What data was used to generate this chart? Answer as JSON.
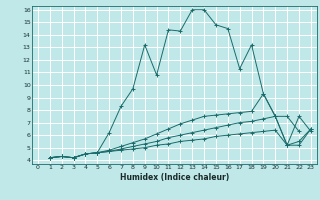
{
  "xlabel": "Humidex (Indice chaleur)",
  "bg_color": "#c0e8e8",
  "grid_color": "#ffffff",
  "line_color": "#1a6b6b",
  "xlim": [
    -0.5,
    23.5
  ],
  "ylim": [
    3.7,
    16.3
  ],
  "xticks": [
    0,
    1,
    2,
    3,
    4,
    5,
    6,
    7,
    8,
    9,
    10,
    11,
    12,
    13,
    14,
    15,
    16,
    17,
    18,
    19,
    20,
    21,
    22,
    23
  ],
  "yticks": [
    4,
    5,
    6,
    7,
    8,
    9,
    10,
    11,
    12,
    13,
    14,
    15,
    16
  ],
  "line1_x": [
    1,
    2,
    3,
    4,
    5,
    6,
    7,
    8,
    9,
    10,
    11,
    12,
    13,
    14,
    15,
    16,
    17,
    18,
    19,
    20,
    21,
    22
  ],
  "line1_y": [
    4.2,
    4.3,
    4.2,
    4.5,
    4.6,
    6.2,
    8.3,
    9.7,
    13.2,
    10.8,
    14.4,
    14.3,
    16.0,
    16.0,
    14.8,
    14.5,
    11.3,
    13.2,
    9.3,
    7.5,
    7.5,
    6.3
  ],
  "line2_x": [
    1,
    2,
    3,
    4,
    5,
    6,
    7,
    8,
    9,
    10,
    11,
    12,
    13,
    14,
    15,
    16,
    17,
    18,
    19,
    20,
    21,
    22,
    23
  ],
  "line2_y": [
    4.2,
    4.3,
    4.2,
    4.5,
    4.6,
    4.8,
    5.1,
    5.4,
    5.7,
    6.1,
    6.5,
    6.9,
    7.2,
    7.5,
    7.6,
    7.7,
    7.8,
    7.9,
    9.3,
    7.5,
    5.2,
    7.5,
    6.3
  ],
  "line3_x": [
    1,
    2,
    3,
    4,
    5,
    6,
    7,
    8,
    9,
    10,
    11,
    12,
    13,
    14,
    15,
    16,
    17,
    18,
    19,
    20,
    21,
    22,
    23
  ],
  "line3_y": [
    4.2,
    4.3,
    4.2,
    4.5,
    4.6,
    4.7,
    4.9,
    5.1,
    5.3,
    5.5,
    5.8,
    6.0,
    6.2,
    6.4,
    6.6,
    6.8,
    7.0,
    7.1,
    7.3,
    7.5,
    5.2,
    5.5,
    6.5
  ],
  "line4_x": [
    1,
    2,
    3,
    4,
    5,
    6,
    7,
    8,
    9,
    10,
    11,
    12,
    13,
    14,
    15,
    16,
    17,
    18,
    19,
    20,
    21,
    22,
    23
  ],
  "line4_y": [
    4.2,
    4.3,
    4.2,
    4.5,
    4.6,
    4.7,
    4.8,
    4.9,
    5.0,
    5.2,
    5.3,
    5.5,
    5.6,
    5.7,
    5.9,
    6.0,
    6.1,
    6.2,
    6.3,
    6.4,
    5.2,
    5.2,
    6.5
  ]
}
